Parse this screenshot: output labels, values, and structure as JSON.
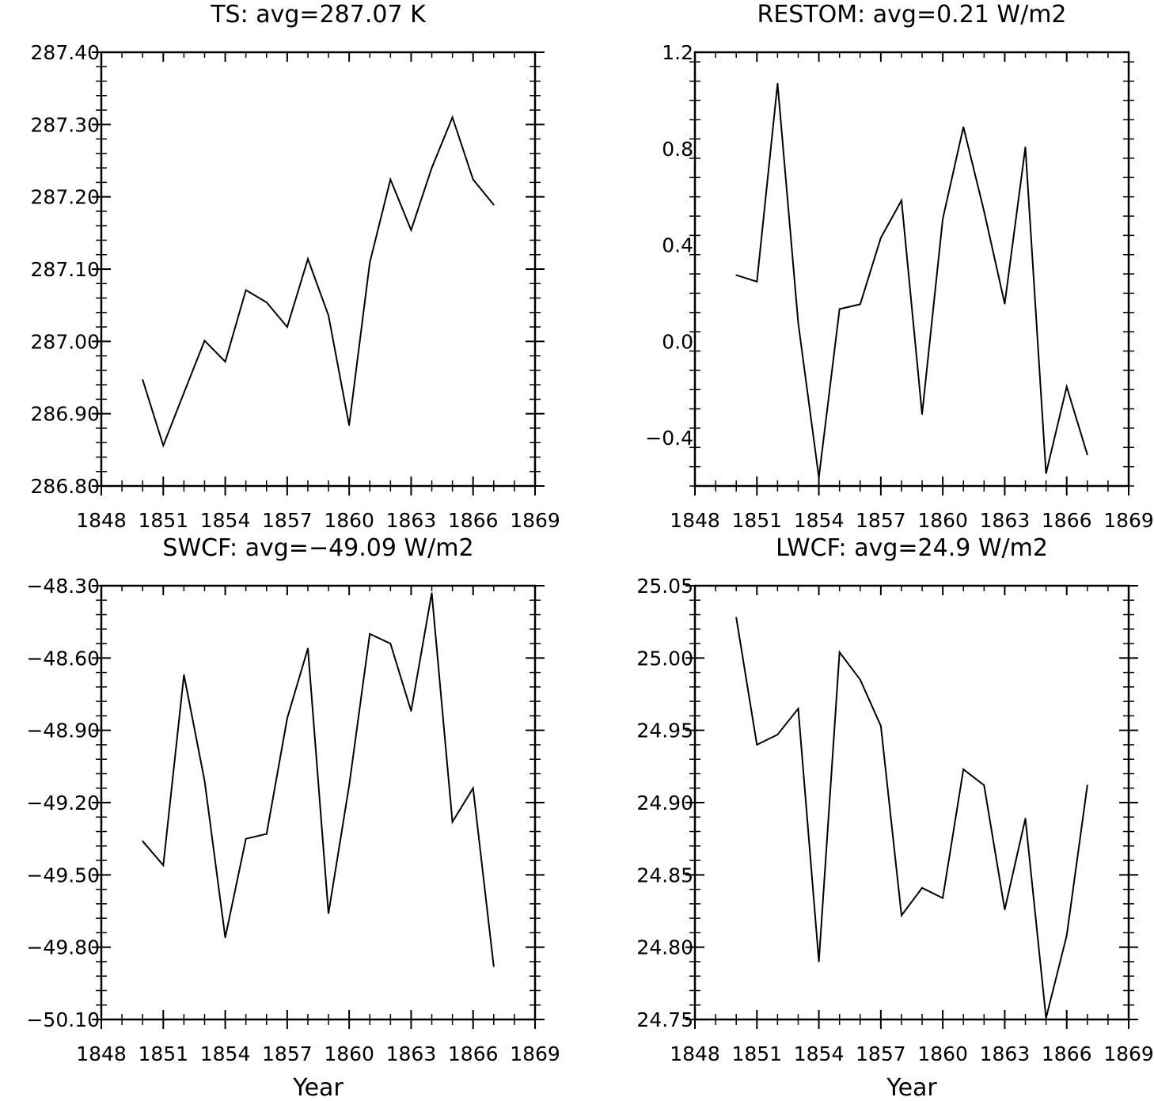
{
  "chart_data": [
    {
      "type": "line",
      "title": "TS: avg=287.07 K",
      "xlabel": "",
      "ylabel": "",
      "xlim": [
        1848,
        1869
      ],
      "ylim": [
        286.8,
        287.4
      ],
      "xticks": [
        1848,
        1851,
        1854,
        1857,
        1860,
        1863,
        1866,
        1869
      ],
      "yticks": [
        286.8,
        286.9,
        287.0,
        287.1,
        287.2,
        287.3,
        287.4
      ],
      "ytick_labels": [
        "286.80",
        "286.90",
        "287.00",
        "287.10",
        "287.20",
        "287.30",
        "287.40"
      ],
      "x": [
        1850,
        1851,
        1852,
        1853,
        1854,
        1855,
        1856,
        1857,
        1858,
        1859,
        1860,
        1861,
        1862,
        1863,
        1864,
        1865,
        1866,
        1867
      ],
      "values": [
        286.947,
        286.856,
        286.929,
        287.001,
        286.972,
        287.071,
        287.054,
        287.02,
        287.114,
        287.036,
        286.884,
        287.109,
        287.224,
        287.154,
        287.24,
        287.31,
        287.224,
        287.189
      ]
    },
    {
      "type": "line",
      "title": "RESTOM: avg=0.21 W/m2",
      "xlabel": "",
      "ylabel": "",
      "xlim": [
        1848,
        1869
      ],
      "ylim": [
        -0.6,
        1.2
      ],
      "xticks": [
        1848,
        1851,
        1854,
        1857,
        1860,
        1863,
        1866,
        1869
      ],
      "yticks": [
        -0.4,
        0.0,
        0.4,
        0.8,
        1.2
      ],
      "ytick_labels": [
        "−0.4",
        "0.0",
        "0.4",
        "0.8",
        "1.2"
      ],
      "x": [
        1850,
        1851,
        1852,
        1853,
        1854,
        1855,
        1856,
        1857,
        1858,
        1859,
        1860,
        1861,
        1862,
        1863,
        1864,
        1865,
        1866,
        1867
      ],
      "values": [
        0.275,
        0.248,
        1.07,
        0.076,
        -0.565,
        0.134,
        0.154,
        0.43,
        0.585,
        -0.302,
        0.508,
        0.89,
        0.54,
        0.156,
        0.806,
        -0.548,
        -0.188,
        -0.47
      ]
    },
    {
      "type": "line",
      "title": "SWCF: avg=−49.09 W/m2",
      "xlabel": "Year",
      "ylabel": "",
      "xlim": [
        1848,
        1869
      ],
      "ylim": [
        -50.1,
        -48.3
      ],
      "xticks": [
        1848,
        1851,
        1854,
        1857,
        1860,
        1863,
        1866,
        1869
      ],
      "yticks": [
        -50.1,
        -49.8,
        -49.5,
        -49.2,
        -48.9,
        -48.6,
        -48.3
      ],
      "ytick_labels": [
        "−50.10",
        "−49.80",
        "−49.50",
        "−49.20",
        "−48.90",
        "−48.60",
        "−48.30"
      ],
      "x": [
        1850,
        1851,
        1852,
        1853,
        1854,
        1855,
        1856,
        1857,
        1858,
        1859,
        1860,
        1861,
        1862,
        1863,
        1864,
        1865,
        1866,
        1867
      ],
      "values": [
        -49.36,
        -49.46,
        -48.67,
        -49.11,
        -49.76,
        -49.35,
        -49.33,
        -48.85,
        -48.56,
        -49.66,
        -49.13,
        -48.5,
        -48.54,
        -48.82,
        -48.33,
        -49.28,
        -49.14,
        -49.88
      ]
    },
    {
      "type": "line",
      "title": "LWCF: avg=24.9 W/m2",
      "xlabel": "Year",
      "ylabel": "",
      "xlim": [
        1848,
        1869
      ],
      "ylim": [
        24.75,
        25.05
      ],
      "xticks": [
        1848,
        1851,
        1854,
        1857,
        1860,
        1863,
        1866,
        1869
      ],
      "yticks": [
        24.75,
        24.8,
        24.85,
        24.9,
        24.95,
        25.0,
        25.05
      ],
      "ytick_labels": [
        "24.75",
        "24.80",
        "24.85",
        "24.90",
        "24.95",
        "25.00",
        "25.05"
      ],
      "x": [
        1850,
        1851,
        1852,
        1853,
        1854,
        1855,
        1856,
        1857,
        1858,
        1859,
        1860,
        1861,
        1862,
        1863,
        1864,
        1865,
        1866,
        1867
      ],
      "values": [
        25.028,
        24.94,
        24.947,
        24.965,
        24.79,
        25.004,
        24.985,
        24.953,
        24.822,
        24.841,
        24.834,
        24.923,
        24.912,
        24.826,
        24.889,
        24.751,
        24.808,
        24.912
      ]
    }
  ]
}
